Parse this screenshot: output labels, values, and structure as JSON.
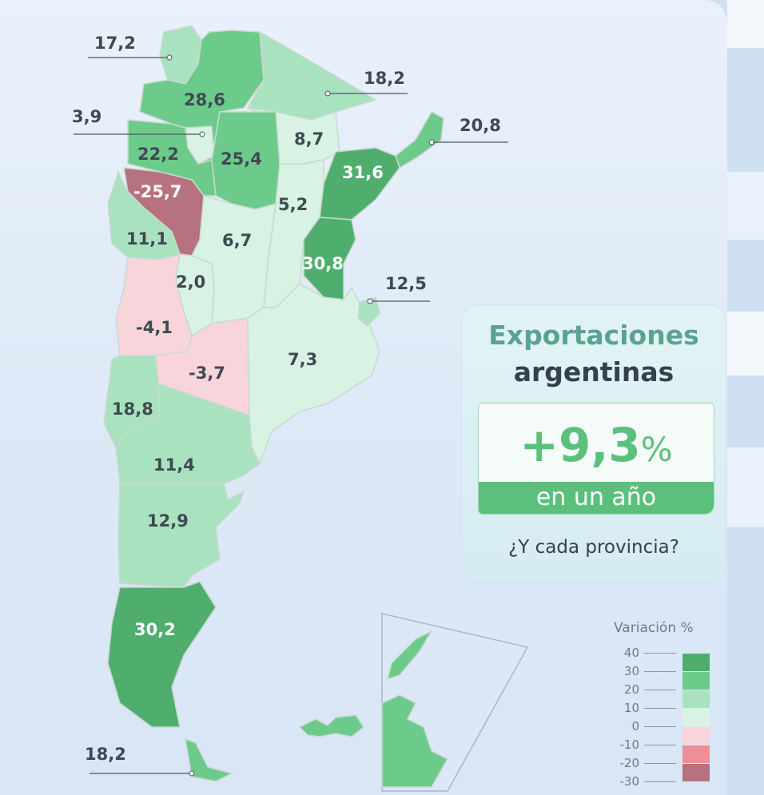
{
  "title": {
    "line1": "Exportaciones",
    "line2": "argentinas",
    "total_value": "+9,3",
    "total_unit": "%",
    "period": "en un año",
    "question": "¿Y cada provincia?"
  },
  "legend": {
    "title": "Variación %",
    "ticks": [
      "40",
      "30",
      "20",
      "10",
      "0",
      "-10",
      "-20",
      "-30"
    ],
    "bins": [
      {
        "range": "30 a 40",
        "color": "#4fae6e"
      },
      {
        "range": "20 a 30",
        "color": "#6ccb8b"
      },
      {
        "range": "10 a 20",
        "color": "#a9e2bf"
      },
      {
        "range": "0 a 10",
        "color": "#d8f2e3"
      },
      {
        "range": "-10 a 0",
        "color": "#f8d5da"
      },
      {
        "range": "-20 a -10",
        "color": "#ec9096"
      },
      {
        "range": "-30 a -20",
        "color": "#b6727e"
      }
    ]
  },
  "provinces": {
    "jujuy": "17,2",
    "salta": "28,6",
    "formosa": "18,2",
    "tucuman": "3,9",
    "chaco": "8,7",
    "misiones": "20,8",
    "catamarca": "22,2",
    "santiago": "25,4",
    "corrientes": "31,6",
    "la_rioja": "-25,7",
    "santa_fe": "5,2",
    "san_juan": "11,1",
    "cordoba": "6,7",
    "entre_rios": "30,8",
    "caba": "12,5",
    "san_luis": "2,0",
    "mendoza": "-4,1",
    "la_pampa": "-3,7",
    "buenos_aires": "7,3",
    "neuquen": "18,8",
    "rio_negro": "11,4",
    "chubut": "12,9",
    "santa_cruz": "30,2",
    "tierra_del_fuego": "18,2"
  }
}
